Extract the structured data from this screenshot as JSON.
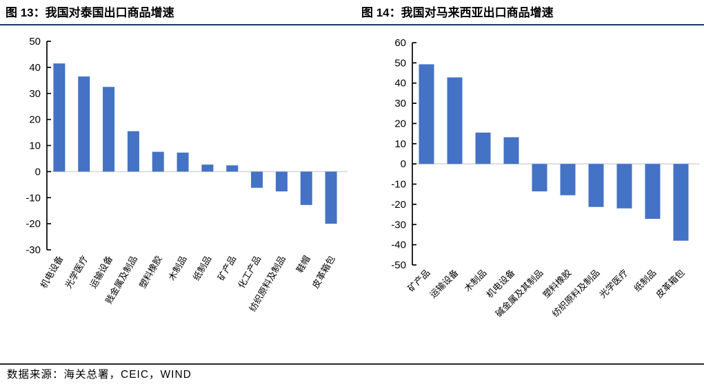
{
  "page": {
    "source_note": "数据来源：海关总署，CEIC，WIND",
    "accent_color": "#4472C4",
    "title_rule_color": "#17375e"
  },
  "chart_data": [
    {
      "type": "bar",
      "title": "图 13：我国对泰国出口商品增速",
      "categories": [
        "机电设备",
        "光学医疗",
        "运输设备",
        "贱金属及制品",
        "塑料橡胶",
        "木制品",
        "纸制品",
        "矿产品",
        "化工产品",
        "纺织原料及制品",
        "鞋帽",
        "皮革箱包"
      ],
      "values": [
        41.5,
        36.5,
        32.5,
        15.5,
        7.6,
        7.3,
        2.7,
        2.4,
        -6.2,
        -7.6,
        -12.8,
        -20.0
      ],
      "yticks": [
        50,
        40,
        30,
        20,
        10,
        0,
        -10,
        -20,
        -30
      ],
      "ylim": [
        -30,
        50
      ],
      "xlabel": "",
      "ylabel": "",
      "grid": "zero-line-only",
      "legend": "none",
      "bar_color": "#4472C4",
      "zero_line_color": "#d6d6d6"
    },
    {
      "type": "bar",
      "title": "图 14：我国对马来西亚出口商品增速",
      "categories": [
        "矿产品",
        "运输设备",
        "木制品",
        "机电设备",
        "碱金属及其制品",
        "塑料橡胶",
        "纺织原料及制品",
        "光学医疗",
        "纸制品",
        "皮革箱包"
      ],
      "values": [
        49.3,
        42.8,
        15.5,
        13.2,
        -13.6,
        -15.5,
        -21.3,
        -22.0,
        -27.2,
        -38.0
      ],
      "yticks": [
        60,
        50,
        40,
        30,
        20,
        10,
        0,
        -10,
        -20,
        -30,
        -40,
        -50
      ],
      "ylim": [
        -50,
        60
      ],
      "xlabel": "",
      "ylabel": "",
      "grid": "zero-line-only",
      "legend": "none",
      "bar_color": "#4472C4",
      "zero_line_color": "#d6d6d6"
    }
  ]
}
